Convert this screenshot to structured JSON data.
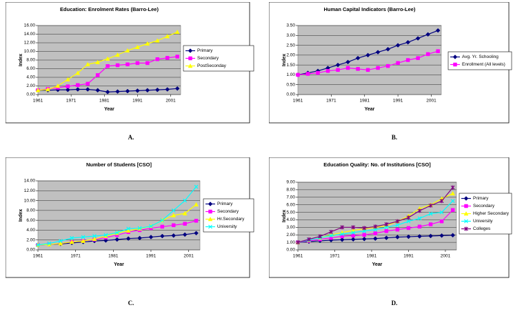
{
  "chart_data": [
    {
      "type": "line",
      "title": "Education: Enrolment Rates (Barro-Lee)",
      "xlabel": "Year",
      "ylabel": "Index",
      "caption": "A.",
      "x": [
        1961,
        1964,
        1967,
        1970,
        1973,
        1976,
        1979,
        1982,
        1985,
        1988,
        1991,
        1994,
        1997,
        2000,
        2003
      ],
      "xlim": [
        1961,
        2004
      ],
      "xticks": [
        1961,
        1971,
        1981,
        1991,
        2001
      ],
      "ylim": [
        0,
        16
      ],
      "yticks": [
        {
          "value": 0,
          "label": "0.00"
        },
        {
          "value": 2,
          "label": "2.00"
        },
        {
          "value": 4,
          "label": "4.00"
        },
        {
          "value": 6,
          "label": "6.00"
        },
        {
          "value": 8,
          "label": "8.00"
        },
        {
          "value": 10,
          "label": "10.00"
        },
        {
          "value": 12,
          "label": "12.00"
        },
        {
          "value": 14,
          "label": "14.00"
        },
        {
          "value": 16,
          "label": "16.00"
        }
      ],
      "grid": true,
      "series": [
        {
          "name": "Primary",
          "color": "#000080",
          "values": [
            1.0,
            1.0,
            1.1,
            1.1,
            1.2,
            1.2,
            1.0,
            0.6,
            0.7,
            0.8,
            0.9,
            1.0,
            1.1,
            1.2,
            1.4
          ]
        },
        {
          "name": "Secondary",
          "color": "#ff00ff",
          "values": [
            1.0,
            1.3,
            1.6,
            1.9,
            2.2,
            2.5,
            4.5,
            6.6,
            6.8,
            7.0,
            7.3,
            7.3,
            8.2,
            8.5,
            8.8
          ]
        },
        {
          "name": "PostSeconday",
          "color": "#ffff00",
          "values": [
            1.0,
            1.2,
            2.0,
            3.5,
            5.0,
            7.0,
            7.5,
            8.3,
            9.2,
            10.2,
            11.0,
            11.8,
            12.5,
            13.5,
            14.5
          ]
        }
      ]
    },
    {
      "type": "line",
      "title": "Human Capital Indicators (Barro-Lee)",
      "xlabel": "Year",
      "ylabel": "Index",
      "caption": "B.",
      "x": [
        1961,
        1964,
        1967,
        1970,
        1973,
        1976,
        1979,
        1982,
        1985,
        1988,
        1991,
        1994,
        1997,
        2000,
        2003
      ],
      "xlim": [
        1961,
        2004
      ],
      "xticks": [
        1961,
        1971,
        1981,
        1991,
        2001
      ],
      "ylim": [
        0,
        3.5
      ],
      "yticks": [
        {
          "value": 0,
          "label": "0.00"
        },
        {
          "value": 0.5,
          "label": "0.50"
        },
        {
          "value": 1,
          "label": "1.00"
        },
        {
          "value": 1.5,
          "label": "1.50"
        },
        {
          "value": 2,
          "label": "2.00"
        },
        {
          "value": 2.5,
          "label": "2.50"
        },
        {
          "value": 3,
          "label": "3.00"
        },
        {
          "value": 3.5,
          "label": "3.50"
        }
      ],
      "grid": true,
      "series": [
        {
          "name": "Avg. Yr. Schooling",
          "color": "#000080",
          "values": [
            1.0,
            1.1,
            1.2,
            1.35,
            1.5,
            1.65,
            1.85,
            2.0,
            2.15,
            2.3,
            2.5,
            2.65,
            2.85,
            3.05,
            3.25
          ]
        },
        {
          "name": "Enrollment (All levels)",
          "color": "#ff00ff",
          "values": [
            1.0,
            1.05,
            1.1,
            1.2,
            1.25,
            1.35,
            1.3,
            1.25,
            1.35,
            1.45,
            1.6,
            1.75,
            1.85,
            2.05,
            2.2
          ]
        }
      ]
    },
    {
      "type": "line",
      "title": "Number of Students [CSO]",
      "xlabel": "Year",
      "ylabel": "Index",
      "caption": "C.",
      "x": [
        1961,
        1964,
        1967,
        1970,
        1973,
        1976,
        1979,
        1982,
        1985,
        1988,
        1991,
        1994,
        1997,
        2000,
        2003
      ],
      "xlim": [
        1961,
        2004
      ],
      "xticks": [
        1961,
        1971,
        1981,
        1991,
        2001
      ],
      "ylim": [
        0,
        14
      ],
      "yticks": [
        {
          "value": 0,
          "label": "0.00"
        },
        {
          "value": 2,
          "label": "2.00"
        },
        {
          "value": 4,
          "label": "4.00"
        },
        {
          "value": 6,
          "label": "6.00"
        },
        {
          "value": 8,
          "label": "8.00"
        },
        {
          "value": 10,
          "label": "10.00"
        },
        {
          "value": 12,
          "label": "12.00"
        },
        {
          "value": 14,
          "label": "14.00"
        }
      ],
      "grid": true,
      "series": [
        {
          "name": "Primary",
          "color": "#000080",
          "values": [
            1.0,
            1.1,
            1.2,
            1.4,
            1.6,
            1.8,
            1.9,
            2.1,
            2.3,
            2.4,
            2.6,
            2.8,
            2.9,
            3.1,
            3.4
          ]
        },
        {
          "name": "Secondary",
          "color": "#ff00ff",
          "values": [
            1.0,
            1.1,
            1.3,
            1.6,
            1.8,
            2.1,
            2.5,
            3.0,
            3.6,
            4.0,
            4.4,
            4.7,
            5.0,
            5.3,
            5.9
          ]
        },
        {
          "name": "Hr.Secondary",
          "color": "#ffff00",
          "values": [
            1.0,
            1.1,
            1.3,
            1.6,
            1.8,
            2.2,
            2.8,
            3.4,
            3.9,
            4.3,
            4.8,
            6.0,
            7.0,
            7.4,
            9.2
          ]
        },
        {
          "name": "University",
          "color": "#00ffff",
          "values": [
            1.0,
            1.3,
            1.8,
            2.4,
            2.6,
            2.8,
            3.0,
            3.5,
            4.3,
            4.4,
            4.8,
            6.0,
            8.0,
            10.0,
            12.8
          ]
        }
      ]
    },
    {
      "type": "line",
      "title": "Education Quality: No. of Institutions [CSO]",
      "xlabel": "Year",
      "ylabel": "Index",
      "caption": "D.",
      "x": [
        1961,
        1964,
        1967,
        1970,
        1973,
        1976,
        1979,
        1982,
        1985,
        1988,
        1991,
        1994,
        1997,
        2000,
        2003
      ],
      "xlim": [
        1961,
        2004
      ],
      "xticks": [
        1961,
        1971,
        1981,
        1991,
        2001
      ],
      "ylim": [
        0,
        9
      ],
      "yticks": [
        {
          "value": 0,
          "label": "0.00"
        },
        {
          "value": 1,
          "label": "1.00"
        },
        {
          "value": 2,
          "label": "2.00"
        },
        {
          "value": 3,
          "label": "3.00"
        },
        {
          "value": 4,
          "label": "4.00"
        },
        {
          "value": 5,
          "label": "5.00"
        },
        {
          "value": 6,
          "label": "6.00"
        },
        {
          "value": 7,
          "label": "7.00"
        },
        {
          "value": 8,
          "label": "8.00"
        },
        {
          "value": 9,
          "label": "9.00"
        }
      ],
      "grid": true,
      "series": [
        {
          "name": "Primary",
          "color": "#000080",
          "values": [
            1.0,
            1.1,
            1.2,
            1.3,
            1.35,
            1.4,
            1.45,
            1.5,
            1.6,
            1.7,
            1.75,
            1.8,
            1.85,
            1.9,
            1.95
          ]
        },
        {
          "name": "Secondary",
          "color": "#ff00ff",
          "values": [
            1.0,
            1.2,
            1.4,
            1.6,
            1.8,
            1.9,
            2.0,
            2.2,
            2.5,
            2.7,
            2.9,
            3.1,
            3.4,
            3.8,
            5.3
          ]
        },
        {
          "name": "Higher Secondary",
          "color": "#ffff00",
          "values": [
            1.0,
            1.3,
            1.6,
            2.0,
            2.3,
            2.6,
            2.8,
            3.0,
            3.2,
            3.8,
            4.5,
            5.5,
            6.0,
            6.8,
            7.5
          ]
        },
        {
          "name": "University",
          "color": "#00ffff",
          "values": [
            1.0,
            1.3,
            1.6,
            1.9,
            2.1,
            2.3,
            2.5,
            2.7,
            3.0,
            3.3,
            3.8,
            4.2,
            4.8,
            5.0,
            6.5
          ]
        },
        {
          "name": "Colleges",
          "color": "#800080",
          "values": [
            1.0,
            1.4,
            1.8,
            2.4,
            3.0,
            3.0,
            2.9,
            3.1,
            3.4,
            3.8,
            4.3,
            5.2,
            5.9,
            6.5,
            8.3
          ]
        }
      ]
    }
  ]
}
